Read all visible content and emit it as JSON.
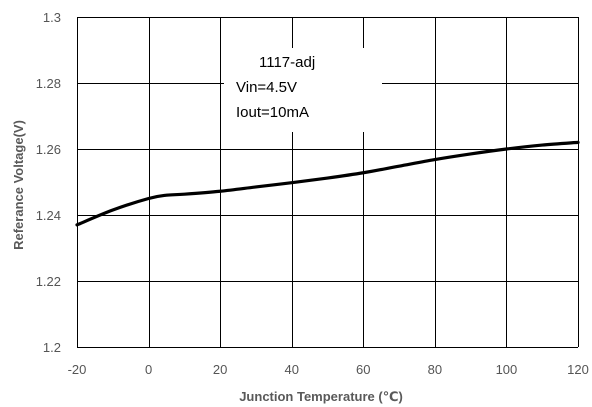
{
  "chart_data": {
    "type": "line",
    "title": "",
    "xlabel": "Junction Temperature (℃)",
    "ylabel": "Referance Voltage(V)",
    "xlim": [
      -20,
      120
    ],
    "ylim": [
      1.2,
      1.3
    ],
    "x_ticks": [
      "-20",
      "0",
      "20",
      "40",
      "60",
      "80",
      "100",
      "120"
    ],
    "y_ticks": [
      "1.2",
      "1.22",
      "1.24",
      "1.26",
      "1.28",
      "1.3"
    ],
    "grid": true,
    "annotation": [
      "1117-adj",
      "Vin=4.5V",
      "Iout=10mA"
    ],
    "series": [
      {
        "x": [
          -20,
          -10,
          0,
          5,
          10,
          20,
          30,
          40,
          50,
          60,
          70,
          80,
          90,
          100,
          110,
          120
        ],
        "y": [
          1.237,
          1.2415,
          1.245,
          1.246,
          1.2463,
          1.2472,
          1.2485,
          1.2498,
          1.2512,
          1.2528,
          1.2548,
          1.2568,
          1.2585,
          1.26,
          1.2612,
          1.262
        ],
        "color": "#000000"
      }
    ]
  }
}
